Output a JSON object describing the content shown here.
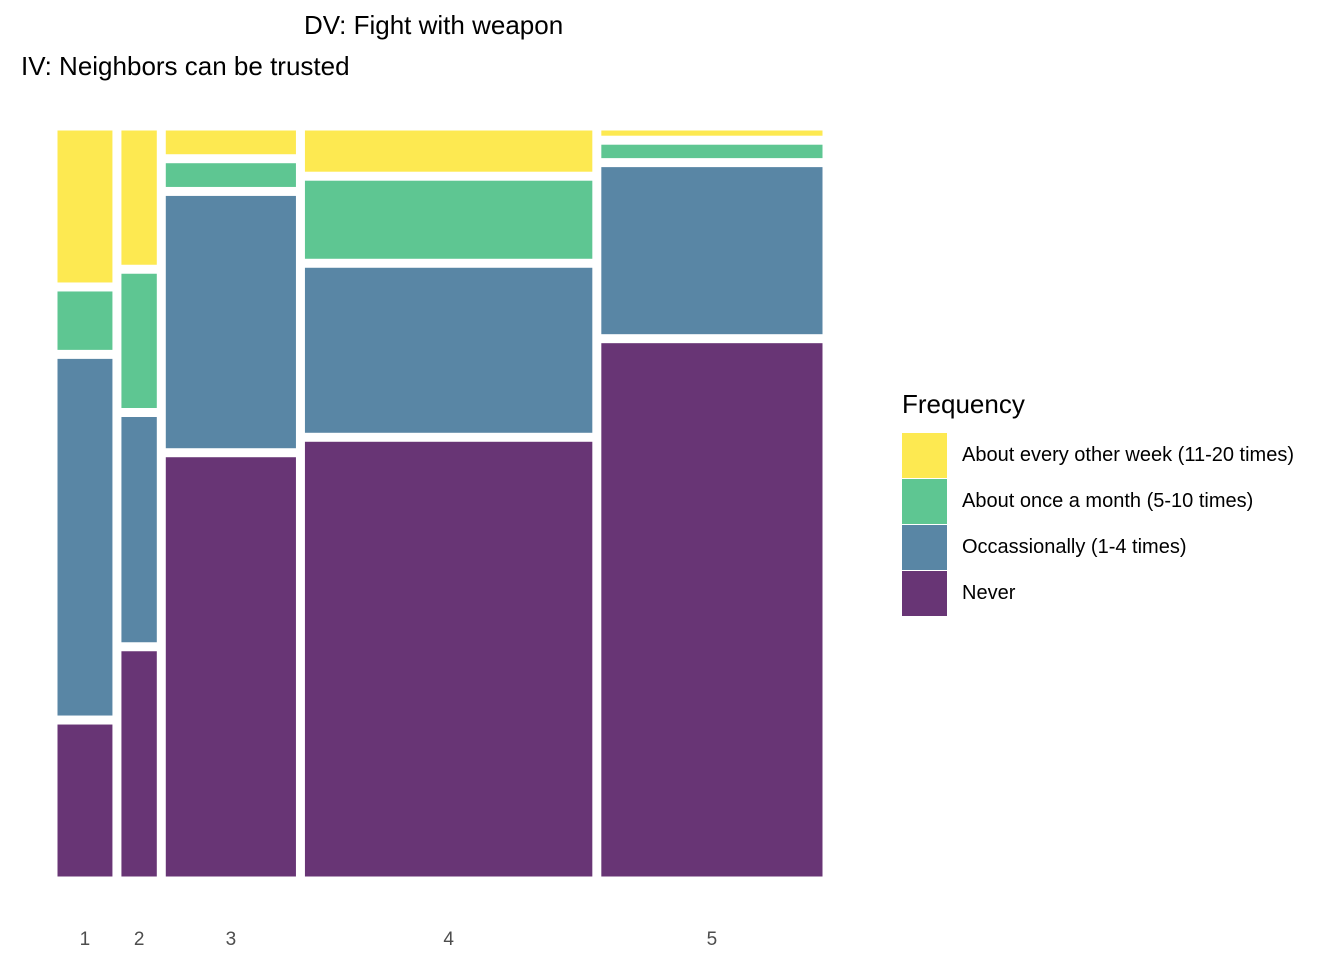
{
  "chart_data": {
    "type": "mosaic",
    "title": "DV: Fight with weapon",
    "subtitle": "IV: Neighbors can be trusted",
    "xlabel": "",
    "ylabel": "",
    "grid": false,
    "legend_placement": "right",
    "legend_title": "Frequency",
    "categories": [
      "1",
      "2",
      "3",
      "4",
      "5"
    ],
    "column_widths": [
      0.077,
      0.051,
      0.177,
      0.386,
      0.298
    ],
    "series": [
      {
        "name": "Never",
        "color": "#683575",
        "values": [
          0.212,
          0.306,
          0.569,
          0.594,
          0.719
        ]
      },
      {
        "name": "Occassionally (1-4 times)",
        "color": "#5986a5",
        "values": [
          0.492,
          0.306,
          0.344,
          0.228,
          0.228
        ]
      },
      {
        "name": "About once a month (5-10 times)",
        "color": "#5ec692",
        "values": [
          0.084,
          0.184,
          0.036,
          0.11,
          0.022
        ]
      },
      {
        "name": "About every other week (11-20 times)",
        "color": "#fde951",
        "values": [
          0.212,
          0.184,
          0.036,
          0.06,
          0.011
        ]
      }
    ],
    "legend_order": [
      3,
      2,
      1,
      0
    ]
  }
}
